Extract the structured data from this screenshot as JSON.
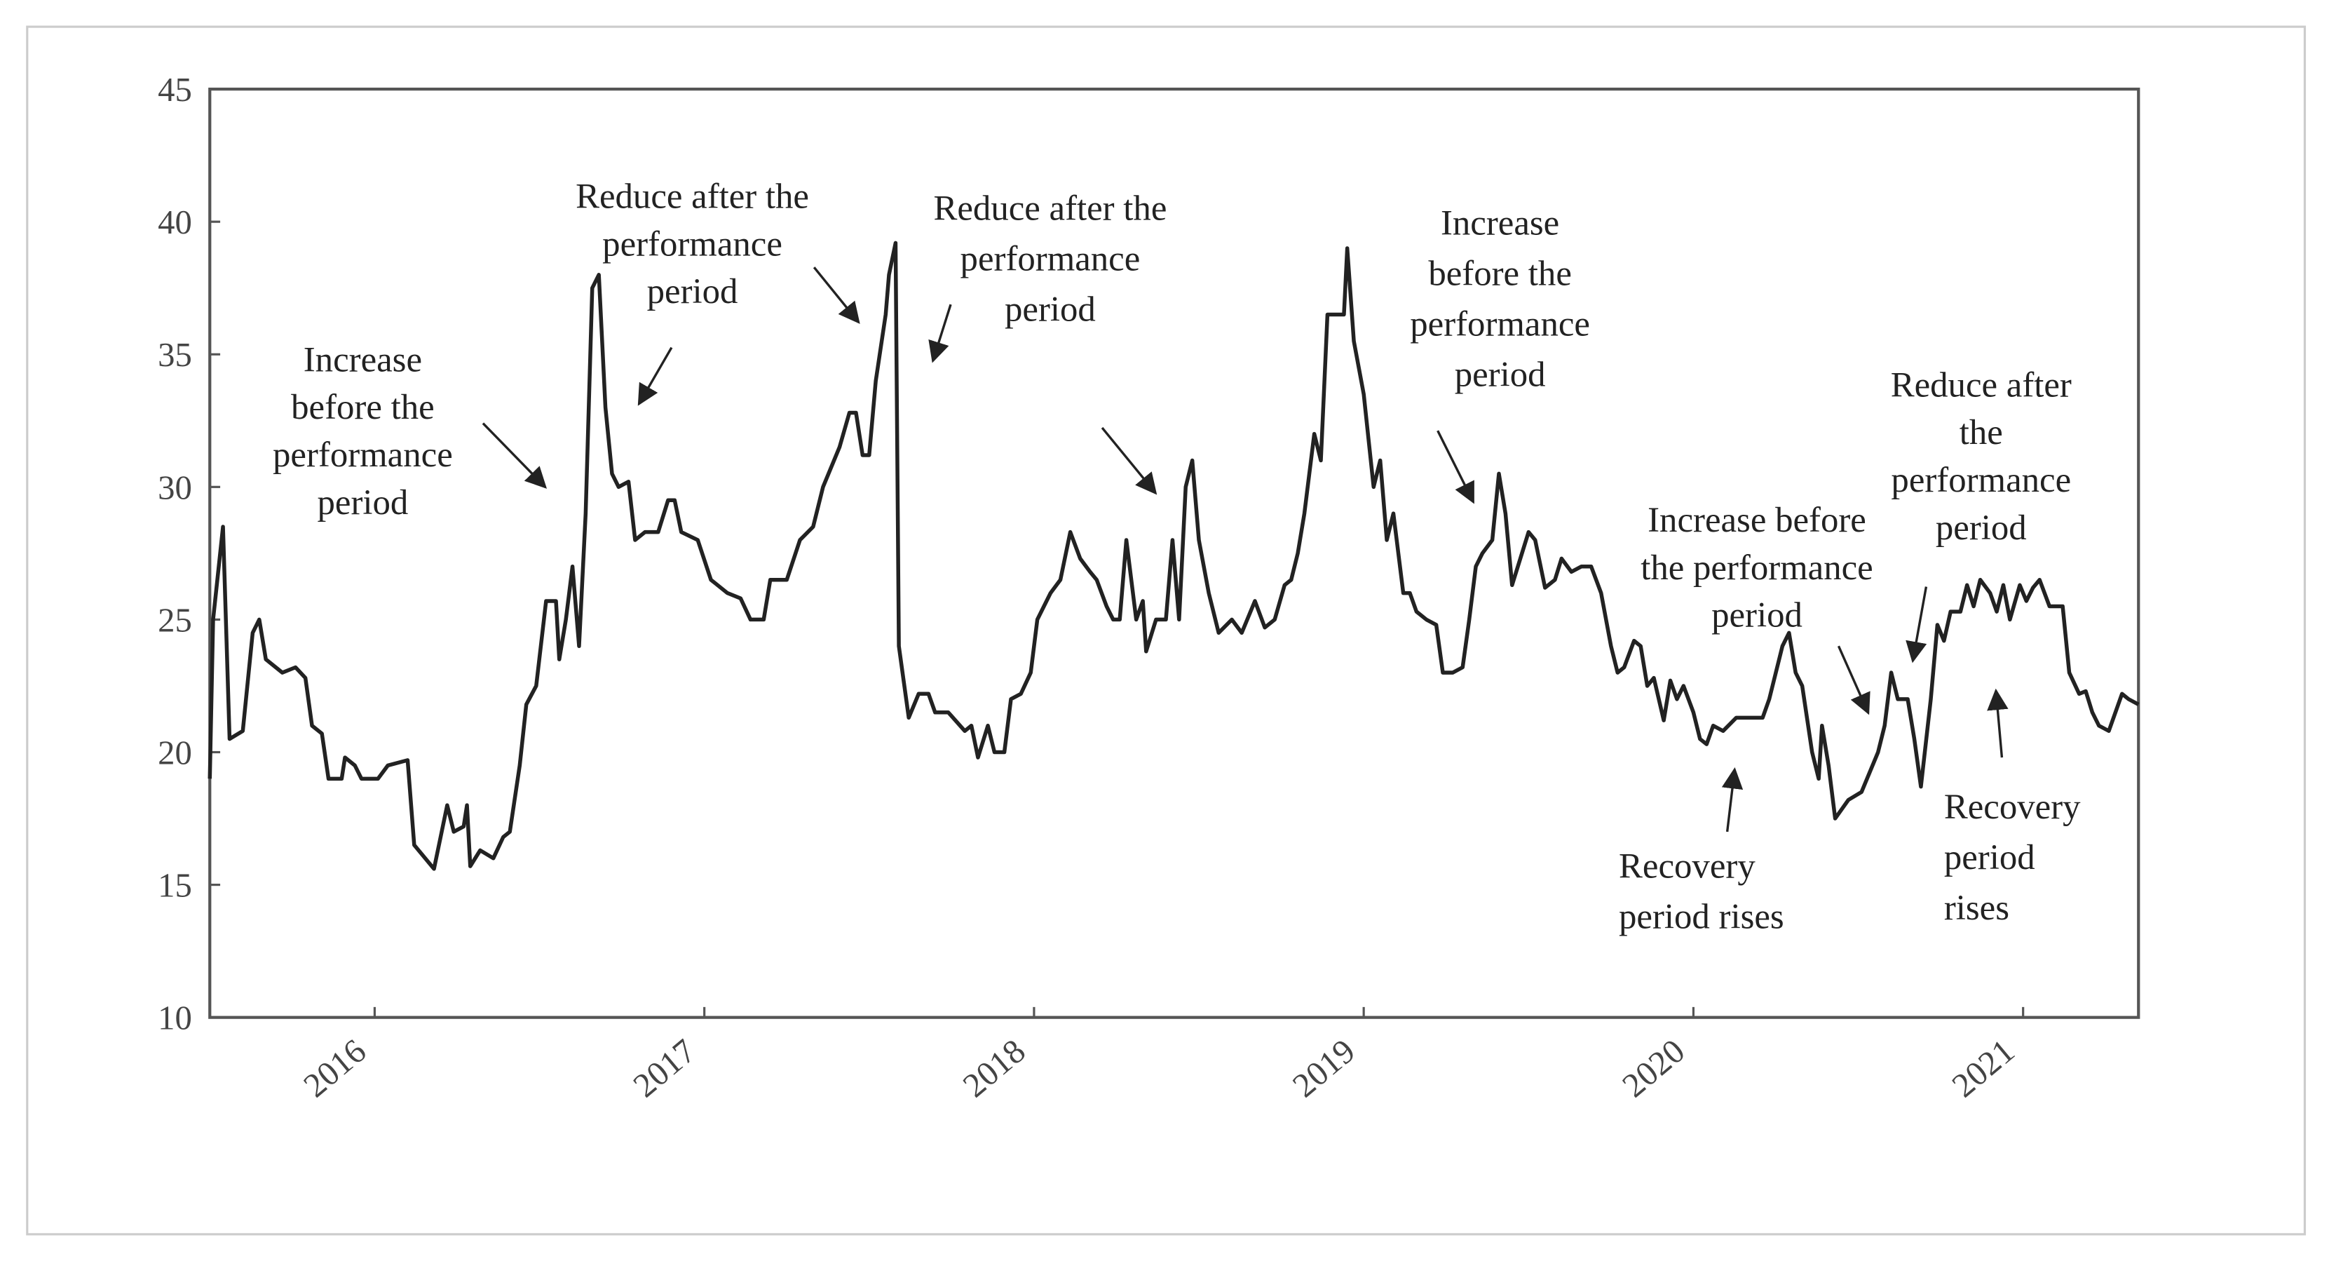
{
  "chart_data": {
    "type": "line",
    "color": "#222222",
    "xlim": [
      2015.5,
      2021.35
    ],
    "xticks": [
      2016,
      2017,
      2018,
      2019,
      2020,
      2021
    ],
    "ylim": [
      10,
      45
    ],
    "yticks": [
      10,
      15,
      20,
      25,
      30,
      35,
      40,
      45
    ],
    "x": [
      2015.5,
      2015.51,
      2015.54,
      2015.56,
      2015.6,
      2015.63,
      2015.65,
      2015.67,
      2015.72,
      2015.76,
      2015.79,
      2015.81,
      2015.84,
      2015.86,
      2015.9,
      2015.91,
      2015.94,
      2015.96,
      2016.01,
      2016.04,
      2016.1,
      2016.12,
      2016.18,
      2016.22,
      2016.24,
      2016.27,
      2016.28,
      2016.29,
      2016.32,
      2016.36,
      2016.39,
      2016.41,
      2016.44,
      2016.46,
      2016.49,
      2016.52,
      2016.55,
      2016.56,
      2016.58,
      2016.6,
      2016.62,
      2016.64,
      2016.66,
      2016.68,
      2016.7,
      2016.72,
      2016.74,
      2016.77,
      2016.79,
      2016.82,
      2016.86,
      2016.89,
      2016.91,
      2016.93,
      2016.98,
      2017.02,
      2017.07,
      2017.11,
      2017.14,
      2017.18,
      2017.2,
      2017.25,
      2017.29,
      2017.33,
      2017.36,
      2017.41,
      2017.44,
      2017.46,
      2017.48,
      2017.5,
      2017.52,
      2017.55,
      2017.56,
      2017.58,
      2017.59,
      2017.62,
      2017.65,
      2017.68,
      2017.7,
      2017.74,
      2017.79,
      2017.81,
      2017.83,
      2017.86,
      2017.88,
      2017.91,
      2017.93,
      2017.96,
      2017.99,
      2018.01,
      2018.05,
      2018.08,
      2018.11,
      2018.14,
      2018.17,
      2018.19,
      2018.22,
      2018.24,
      2018.26,
      2018.28,
      2018.31,
      2018.33,
      2018.34,
      2018.37,
      2018.4,
      2018.42,
      2018.44,
      2018.46,
      2018.48,
      2018.5,
      2018.53,
      2018.56,
      2018.6,
      2018.63,
      2018.67,
      2018.7,
      2018.73,
      2018.76,
      2018.78,
      2018.8,
      2018.82,
      2018.85,
      2018.87,
      2018.89,
      2018.91,
      2018.94,
      2018.95,
      2018.97,
      2019.0,
      2019.03,
      2019.05,
      2019.07,
      2019.09,
      2019.12,
      2019.14,
      2019.16,
      2019.19,
      2019.22,
      2019.24,
      2019.27,
      2019.3,
      2019.32,
      2019.34,
      2019.36,
      2019.39,
      2019.41,
      2019.43,
      2019.45,
      2019.48,
      2019.5,
      2019.52,
      2019.55,
      2019.58,
      2019.6,
      2019.63,
      2019.66,
      2019.69,
      2019.72,
      2019.75,
      2019.77,
      2019.79,
      2019.82,
      2019.84,
      2019.86,
      2019.88,
      2019.91,
      2019.93,
      2019.95,
      2019.97,
      2020.0,
      2020.02,
      2020.04,
      2020.06,
      2020.09,
      2020.13,
      2020.18,
      2020.21,
      2020.23,
      2020.27,
      2020.29,
      2020.31,
      2020.33,
      2020.36,
      2020.38,
      2020.39,
      2020.41,
      2020.43,
      2020.47,
      2020.51,
      2020.56,
      2020.58,
      2020.6,
      2020.62,
      2020.65,
      2020.67,
      2020.69,
      2020.72,
      2020.74,
      2020.76,
      2020.78,
      2020.81,
      2020.83,
      2020.85,
      2020.87,
      2020.9,
      2020.92,
      2020.94,
      2020.96,
      2020.99,
      2021.01,
      2021.03,
      2021.05,
      2021.08,
      2021.12,
      2021.14,
      2021.17,
      2021.19,
      2021.21,
      2021.23,
      2021.26,
      2021.28,
      2021.3,
      2021.32,
      2021.35
    ],
    "values": [
      19,
      25,
      28.5,
      20.5,
      20.8,
      24.5,
      25,
      23.5,
      23,
      23.2,
      22.8,
      21,
      20.7,
      19,
      19,
      19.8,
      19.5,
      19,
      19,
      19.5,
      19.7,
      16.5,
      15.6,
      18,
      17,
      17.2,
      18,
      15.7,
      16.3,
      16,
      16.8,
      17,
      19.5,
      21.8,
      22.5,
      25.7,
      25.7,
      23.5,
      25,
      27,
      24,
      29,
      37.5,
      38,
      33,
      30.5,
      30,
      30.2,
      28,
      28.3,
      28.3,
      29.5,
      29.5,
      28.3,
      28,
      26.5,
      26,
      25.8,
      25,
      25,
      26.5,
      26.5,
      28,
      28.5,
      30,
      31.5,
      32.8,
      32.8,
      31.2,
      31.2,
      34,
      36.5,
      38,
      39.2,
      24,
      21.3,
      22.2,
      22.2,
      21.5,
      21.5,
      20.8,
      21,
      19.8,
      21,
      20,
      20,
      22,
      22.2,
      23,
      25,
      26,
      26.5,
      28.3,
      27.3,
      26.8,
      26.5,
      25.5,
      25,
      25,
      28,
      25,
      25.7,
      23.8,
      25,
      25,
      28,
      25,
      30,
      31,
      28,
      26,
      24.5,
      25,
      24.5,
      25.7,
      24.7,
      25,
      26.3,
      26.5,
      27.5,
      29,
      32,
      31,
      36.5,
      36.5,
      36.5,
      39,
      35.5,
      33.5,
      30,
      31,
      28,
      29,
      26,
      26,
      25.3,
      25,
      24.8,
      23,
      23,
      23.2,
      25,
      27,
      27.5,
      28,
      30.5,
      29,
      26.3,
      27.5,
      28.3,
      28,
      26.2,
      26.5,
      27.3,
      26.8,
      27,
      27,
      26,
      24,
      23,
      23.2,
      24.2,
      24,
      22.5,
      22.8,
      21.2,
      22.7,
      22,
      22.5,
      21.5,
      20.5,
      20.3,
      21,
      20.8,
      21.3,
      21.3,
      21.3,
      22,
      24,
      24.5,
      23,
      22.5,
      20,
      19,
      21,
      19.5,
      17.5,
      18.2,
      18.5,
      20,
      21,
      23,
      22,
      22,
      20.5,
      18.7,
      22,
      24.8,
      24.2,
      25.3,
      25.3,
      26.3,
      25.5,
      26.5,
      26,
      25.3,
      26.3,
      25,
      26.3,
      25.7,
      26.2,
      26.5,
      25.5,
      25.5,
      23,
      22.2,
      22.3,
      21.5,
      21,
      20.8,
      21.5,
      22.2,
      22,
      21.8
    ],
    "annotations": [
      {
        "lines": [
          "Increase",
          "before the",
          "performance",
          "period"
        ]
      },
      {
        "lines": [
          "Reduce after the",
          "performance",
          "period"
        ]
      },
      {
        "lines": [
          "Reduce after the",
          "performance",
          "period"
        ]
      },
      {
        "lines": [
          "Increase",
          "before the",
          "performance",
          "period"
        ]
      },
      {
        "lines": [
          "Increase before",
          "the performance",
          "period"
        ]
      },
      {
        "lines": [
          "Reduce after",
          "the",
          "performance",
          "period"
        ]
      },
      {
        "lines": [
          "Recovery",
          "period rises"
        ]
      },
      {
        "lines": [
          "Recovery",
          "period",
          "rises"
        ]
      }
    ]
  }
}
